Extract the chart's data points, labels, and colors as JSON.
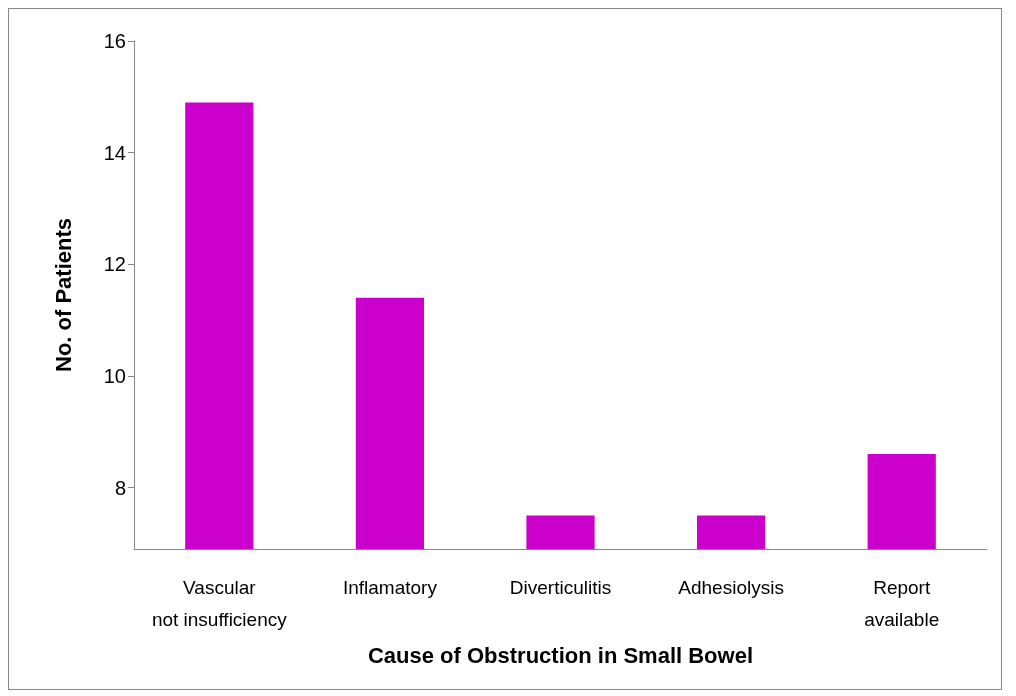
{
  "chart_data": {
    "type": "bar",
    "xlabel": "Cause of Obstruction in Small Bowel",
    "ylabel": "No. of Patients",
    "categories": [
      "Vascular\nnot insufficiency",
      "Inflamatory",
      "Diverticulitis",
      "Adhesiolysis",
      "Report\navailable"
    ],
    "values": [
      14.9,
      11.4,
      7.5,
      7.5,
      8.6
    ],
    "color": "#cc00cc",
    "ylim": [
      6.9,
      16
    ],
    "yticks": [
      8,
      10,
      12,
      14,
      16
    ],
    "grid": false
  }
}
